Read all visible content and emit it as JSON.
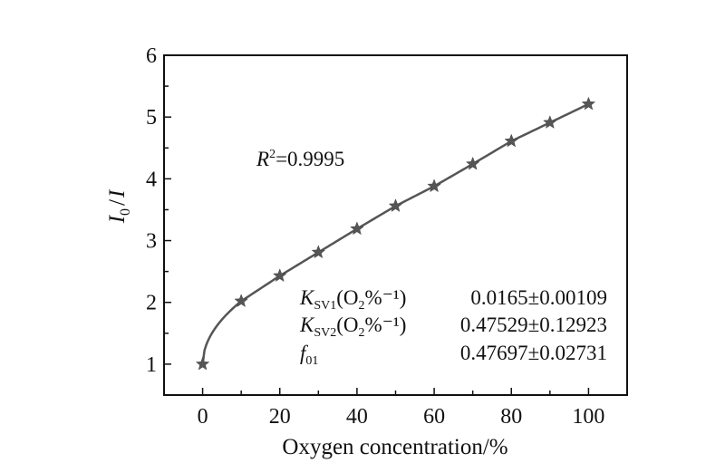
{
  "chart_data": {
    "type": "scatter",
    "x": [
      0,
      10,
      20,
      30,
      40,
      50,
      60,
      70,
      80,
      90,
      100
    ],
    "series": [
      {
        "values": [
          1.0,
          2.02,
          2.43,
          2.81,
          3.19,
          3.56,
          3.88,
          4.24,
          4.61,
          4.91,
          5.21
        ],
        "marker": "star",
        "fit_line": true
      }
    ],
    "xlabel": "Oxygen concentration/%",
    "ylabel": {
      "I0": "I",
      "sub": "0",
      "slash": "/",
      "I": "I"
    },
    "xlim": [
      -10,
      110
    ],
    "ylim": [
      0.5,
      6
    ],
    "xticks": [
      "0",
      "20",
      "40",
      "60",
      "80",
      "100"
    ],
    "yticks": [
      "1",
      "2",
      "3",
      "4",
      "5",
      "6"
    ],
    "grid": false,
    "color": "#555555",
    "annotations": {
      "r2": {
        "R": "R",
        "sup": "2",
        "value": "=0.9995"
      },
      "params": [
        {
          "symbol": "K",
          "sub": "SV1",
          "unit_prefix": "(O",
          "unit_sub": "2",
          "unit_suffix": "%⁻¹)",
          "value": "0.0165±0.00109"
        },
        {
          "symbol": "K",
          "sub": "SV2",
          "unit_prefix": "(O",
          "unit_sub": "2",
          "unit_suffix": "%⁻¹)",
          "value": "0.47529±0.12923"
        },
        {
          "symbol": "f",
          "sub": "01",
          "unit_prefix": "",
          "unit_sub": "",
          "unit_suffix": "",
          "value": "0.47697±0.02731"
        }
      ]
    }
  }
}
